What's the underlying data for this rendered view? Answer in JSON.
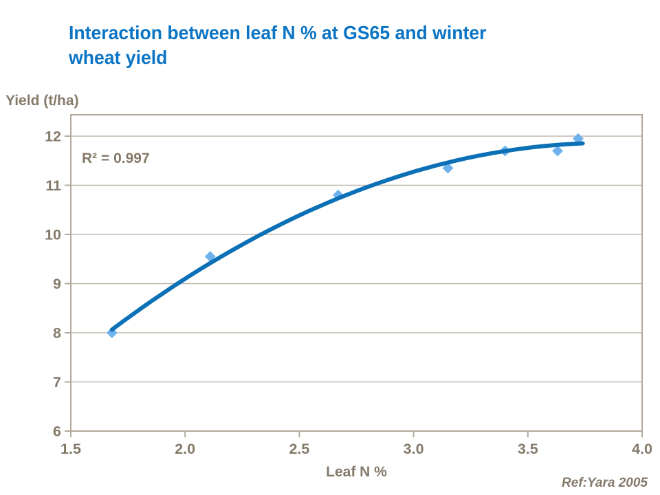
{
  "slide": {
    "title": "Interaction between leaf N % at GS65 and winter wheat yield",
    "title_lines": [
      "Interaction between leaf N % at GS65 and winter",
      "wheat yield"
    ],
    "ref": "Ref:Yara 2005"
  },
  "colors": {
    "title_blue": "#0B74C4",
    "axis_text": "#85796A",
    "frame": "#B3A99B",
    "gridline": "#BFB6A9",
    "trendline": "#0C70B6",
    "marker": "#6FB2EB",
    "background": "#FFFFFF"
  },
  "chart_data": {
    "type": "scatter",
    "title": "Interaction between leaf N % at GS65 and winter wheat yield",
    "xlabel": "Leaf N %",
    "ylabel": "Yield (t/ha)",
    "annotation": "R² = 0.997",
    "x_ticks": [
      1.5,
      2.0,
      2.5,
      3.0,
      3.5,
      4.0
    ],
    "x_tick_labels": [
      "1.5",
      "2.0",
      "2.5",
      "3.0",
      "3.5",
      "4.0"
    ],
    "y_ticks": [
      6,
      7,
      8,
      9,
      10,
      11,
      12
    ],
    "y_tick_labels": [
      "6",
      "7",
      "8",
      "9",
      "10",
      "11",
      "12"
    ],
    "xlim": [
      1.5,
      4.0
    ],
    "ylim": [
      6,
      12.43
    ],
    "grid": "horizontal-only",
    "legend": "none",
    "points": [
      {
        "x": 1.68,
        "y": 8.0
      },
      {
        "x": 2.11,
        "y": 9.55
      },
      {
        "x": 2.67,
        "y": 10.8
      },
      {
        "x": 3.15,
        "y": 11.35
      },
      {
        "x": 3.4,
        "y": 11.7
      },
      {
        "x": 3.63,
        "y": 11.7
      },
      {
        "x": 3.72,
        "y": 11.95
      }
    ],
    "trendline": {
      "type": "quadratic",
      "a": -0.8017,
      "b": 6.1851,
      "c": -0.0651,
      "x_start": 1.68,
      "x_end": 3.74,
      "r_squared": 0.997
    }
  }
}
